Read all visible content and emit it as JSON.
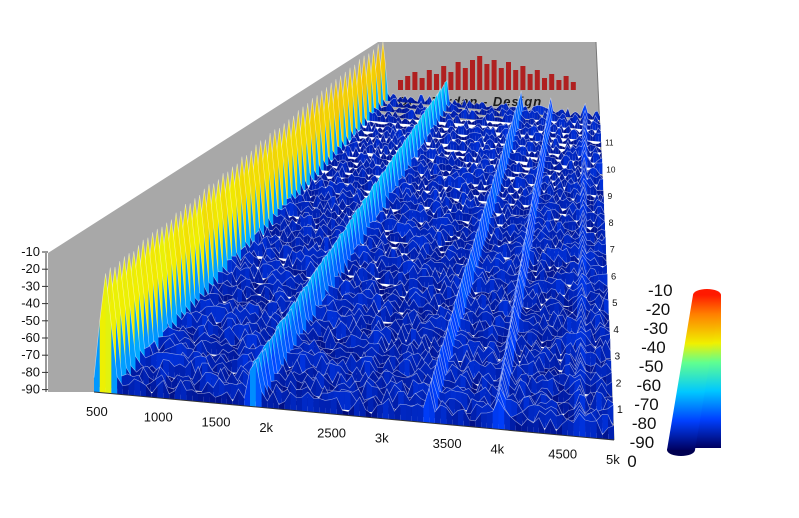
{
  "logo": {
    "text": "Dr - Jordan - Design"
  },
  "chart_data": {
    "type": "waterfall-3d",
    "title": "",
    "x_axis": {
      "label": "",
      "range": [
        500,
        5000
      ],
      "ticks": [
        "500",
        "1000",
        "1500",
        "2k",
        "2500",
        "3k",
        "3500",
        "4k",
        "4500",
        "5k"
      ]
    },
    "z_axis_left": {
      "label": "",
      "range": [
        -90,
        -10
      ],
      "ticks": [
        "-10",
        "-20",
        "-30",
        "-40",
        "-50",
        "-60",
        "-70",
        "-80",
        "-90"
      ]
    },
    "z_axis_right": {
      "label": "",
      "range": [
        -90,
        -10
      ],
      "ticks": [
        "-10",
        "-20",
        "-30",
        "-40",
        "-50",
        "-60",
        "-70",
        "-80",
        "-90",
        "0"
      ]
    },
    "depth_axis": {
      "label": "",
      "range": [
        0,
        11
      ],
      "ticks": [
        "11",
        "10",
        "9",
        "8",
        "7",
        "6",
        "5",
        "4",
        "3",
        "2",
        "1"
      ]
    },
    "colorscale": {
      "range": [
        -90,
        -10
      ],
      "stops": [
        {
          "value": -90,
          "color": "#000060"
        },
        {
          "value": -75,
          "color": "#0040ff"
        },
        {
          "value": -60,
          "color": "#00c8ff"
        },
        {
          "value": -45,
          "color": "#60ff90"
        },
        {
          "value": -35,
          "color": "#f0f000"
        },
        {
          "value": -20,
          "color": "#ff8000"
        },
        {
          "value": -10,
          "color": "#ff1a00"
        }
      ]
    },
    "ridges": [
      {
        "freq": 600,
        "level_front": -22,
        "level_back": -15,
        "width": 70
      },
      {
        "freq": 1880,
        "level_front": -60,
        "level_back": -52,
        "width": 55
      },
      {
        "freq": 3400,
        "level_front": -70,
        "level_back": -62,
        "width": 45
      },
      {
        "freq": 4000,
        "level_front": -72,
        "level_back": -66,
        "width": 45
      },
      {
        "freq": 4700,
        "level_front": -78,
        "level_back": -72,
        "width": 40
      }
    ],
    "noise_floor": -85
  }
}
